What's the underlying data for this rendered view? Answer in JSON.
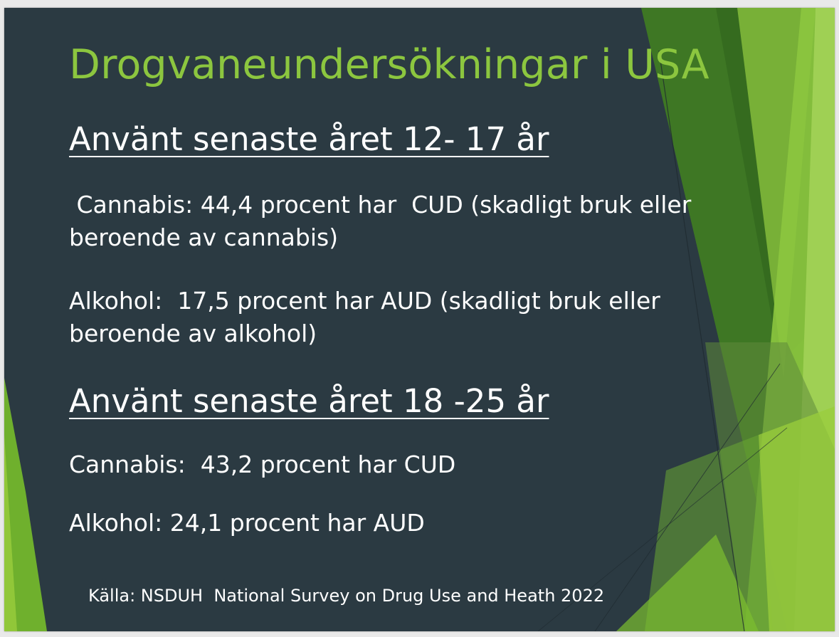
{
  "slide": {
    "title": "Drogvaneundersökningar i USA",
    "section1": {
      "heading": "Använt senaste året 12- 17 år",
      "cannabis_line1": " Cannabis: 44,4 procent har  CUD (skadligt bruk eller",
      "cannabis_line2": "beroende av cannabis)",
      "alcohol_line1": "Alkohol:  17,5 procent har AUD (skadligt bruk eller",
      "alcohol_line2": "beroende av alkohol)"
    },
    "section2": {
      "heading": "Använt senaste året 18 -25 år",
      "cannabis": "Cannabis:  43,2 procent har CUD",
      "alcohol": "Alkohol: 24,1 procent har AUD"
    },
    "source": "Källa: NSDUH  National Survey on Drug Use and Heath 2022"
  },
  "colors": {
    "background": "#2b3a42",
    "title": "#8cc63f",
    "text": "#ffffff",
    "accent_green_light": "#9acd3c",
    "accent_green_dark": "#3f7a23"
  }
}
